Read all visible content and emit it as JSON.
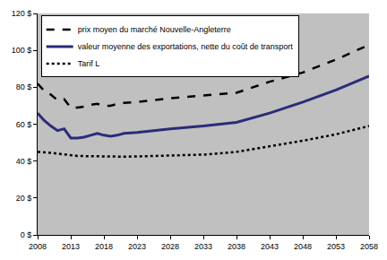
{
  "chart_data": {
    "type": "line",
    "x": [
      2008,
      2009,
      2010,
      2011,
      2012,
      2013,
      2014,
      2015,
      2016,
      2017,
      2018,
      2019,
      2020,
      2021,
      2023,
      2028,
      2033,
      2038,
      2043,
      2048,
      2053,
      2058
    ],
    "series": [
      {
        "name": "prix moyen du marché Nouvelle-Angleterre",
        "color": "#000000",
        "line_style": "dashed",
        "values": [
          82,
          78,
          76,
          73,
          73.5,
          69,
          69,
          69.5,
          70.5,
          71,
          70,
          70,
          71,
          71.5,
          72,
          74,
          75.5,
          77,
          83,
          88,
          95,
          103
        ]
      },
      {
        "name": "valeur moyenne des exportations, nette du coût de transport",
        "color": "#2b2b7a",
        "line_style": "solid",
        "values": [
          66,
          62,
          59,
          56.5,
          57.5,
          52.5,
          52.5,
          53,
          54,
          55,
          54,
          53.5,
          54,
          55,
          55.5,
          57.5,
          59,
          61,
          66,
          72,
          78.5,
          86
        ]
      },
      {
        "name": "Tarif L",
        "color": "#000000",
        "line_style": "dotted",
        "values": [
          45,
          44.8,
          44.5,
          44,
          43.5,
          43,
          42.8,
          42.7,
          42.6,
          42.5,
          42.5,
          42.4,
          42.4,
          42.4,
          42.5,
          43,
          43.5,
          45,
          48,
          51,
          54.5,
          59
        ]
      }
    ],
    "xlim": [
      2008,
      2058
    ],
    "xticks": [
      2008,
      2013,
      2018,
      2023,
      2028,
      2033,
      2038,
      2043,
      2048,
      2053,
      2058
    ],
    "ylim": [
      0,
      120
    ],
    "yticks": [
      {
        "value": 0,
        "label": "0 $"
      },
      {
        "value": 20,
        "label": "20 $"
      },
      {
        "value": 40,
        "label": "40 $"
      },
      {
        "value": 60,
        "label": "60 $"
      },
      {
        "value": 80,
        "label": "80 $"
      },
      {
        "value": 100,
        "label": "100 $"
      },
      {
        "value": 120,
        "label": "120 $"
      }
    ],
    "grid": false,
    "legend": "top-left"
  }
}
